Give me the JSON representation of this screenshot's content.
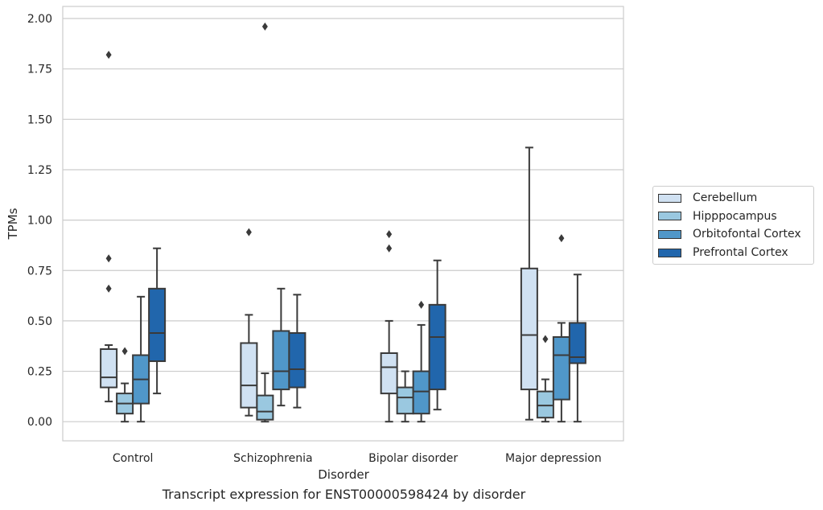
{
  "caption": "Transcript expression for ENST00000598424 by disorder",
  "chart_data": {
    "type": "box",
    "xlabel": "Disorder",
    "ylabel": "TPMs",
    "ylim": [
      -0.095,
      2.06
    ],
    "yticks": [
      "0.00",
      "0.25",
      "0.50",
      "0.75",
      "1.00",
      "1.25",
      "1.50",
      "1.75",
      "2.00"
    ],
    "ytick_values": [
      0,
      0.25,
      0.5,
      0.75,
      1.0,
      1.25,
      1.5,
      1.75,
      2.0
    ],
    "grid": "horizontal",
    "legend_position": "outside right",
    "categories": [
      "Control",
      "Schizophrenia",
      "Bipolar disorder",
      "Major depression"
    ],
    "series": [
      {
        "name": "Cerebellum",
        "color": "#d0e1f2",
        "boxes": [
          {
            "whislo": 0.1,
            "q1": 0.17,
            "med": 0.22,
            "q3": 0.36,
            "whishi": 0.38,
            "fliers": [
              0.66,
              0.81,
              1.82
            ]
          },
          {
            "whislo": 0.03,
            "q1": 0.07,
            "med": 0.18,
            "q3": 0.39,
            "whishi": 0.53,
            "fliers": [
              0.94
            ]
          },
          {
            "whislo": 0.0,
            "q1": 0.14,
            "med": 0.27,
            "q3": 0.34,
            "whishi": 0.5,
            "fliers": [
              0.86,
              0.93
            ]
          },
          {
            "whislo": 0.01,
            "q1": 0.16,
            "med": 0.43,
            "q3": 0.76,
            "whishi": 1.36,
            "fliers": []
          }
        ]
      },
      {
        "name": "Hipppocampus",
        "color": "#9ac8e0",
        "boxes": [
          {
            "whislo": 0.0,
            "q1": 0.04,
            "med": 0.09,
            "q3": 0.14,
            "whishi": 0.19,
            "fliers": [
              0.35
            ]
          },
          {
            "whislo": 0.0,
            "q1": 0.01,
            "med": 0.05,
            "q3": 0.13,
            "whishi": 0.24,
            "fliers": [
              1.96
            ]
          },
          {
            "whislo": 0.0,
            "q1": 0.04,
            "med": 0.12,
            "q3": 0.17,
            "whishi": 0.25,
            "fliers": []
          },
          {
            "whislo": 0.0,
            "q1": 0.02,
            "med": 0.08,
            "q3": 0.15,
            "whishi": 0.21,
            "fliers": [
              0.41
            ]
          }
        ]
      },
      {
        "name": "Orbitofontal Cortex",
        "color": "#5097c9",
        "boxes": [
          {
            "whislo": 0.0,
            "q1": 0.09,
            "med": 0.21,
            "q3": 0.33,
            "whishi": 0.62,
            "fliers": []
          },
          {
            "whislo": 0.08,
            "q1": 0.16,
            "med": 0.25,
            "q3": 0.45,
            "whishi": 0.66,
            "fliers": []
          },
          {
            "whislo": 0.0,
            "q1": 0.04,
            "med": 0.15,
            "q3": 0.25,
            "whishi": 0.48,
            "fliers": [
              0.58
            ]
          },
          {
            "whislo": 0.0,
            "q1": 0.11,
            "med": 0.33,
            "q3": 0.42,
            "whishi": 0.49,
            "fliers": [
              0.91
            ]
          }
        ]
      },
      {
        "name": "Prefrontal Cortex",
        "color": "#2166ac",
        "boxes": [
          {
            "whislo": 0.14,
            "q1": 0.3,
            "med": 0.44,
            "q3": 0.66,
            "whishi": 0.86,
            "fliers": []
          },
          {
            "whislo": 0.07,
            "q1": 0.17,
            "med": 0.26,
            "q3": 0.44,
            "whishi": 0.63,
            "fliers": []
          },
          {
            "whislo": 0.06,
            "q1": 0.16,
            "med": 0.42,
            "q3": 0.58,
            "whishi": 0.8,
            "fliers": []
          },
          {
            "whislo": 0.0,
            "q1": 0.29,
            "med": 0.32,
            "q3": 0.49,
            "whishi": 0.73,
            "fliers": []
          }
        ]
      }
    ]
  }
}
